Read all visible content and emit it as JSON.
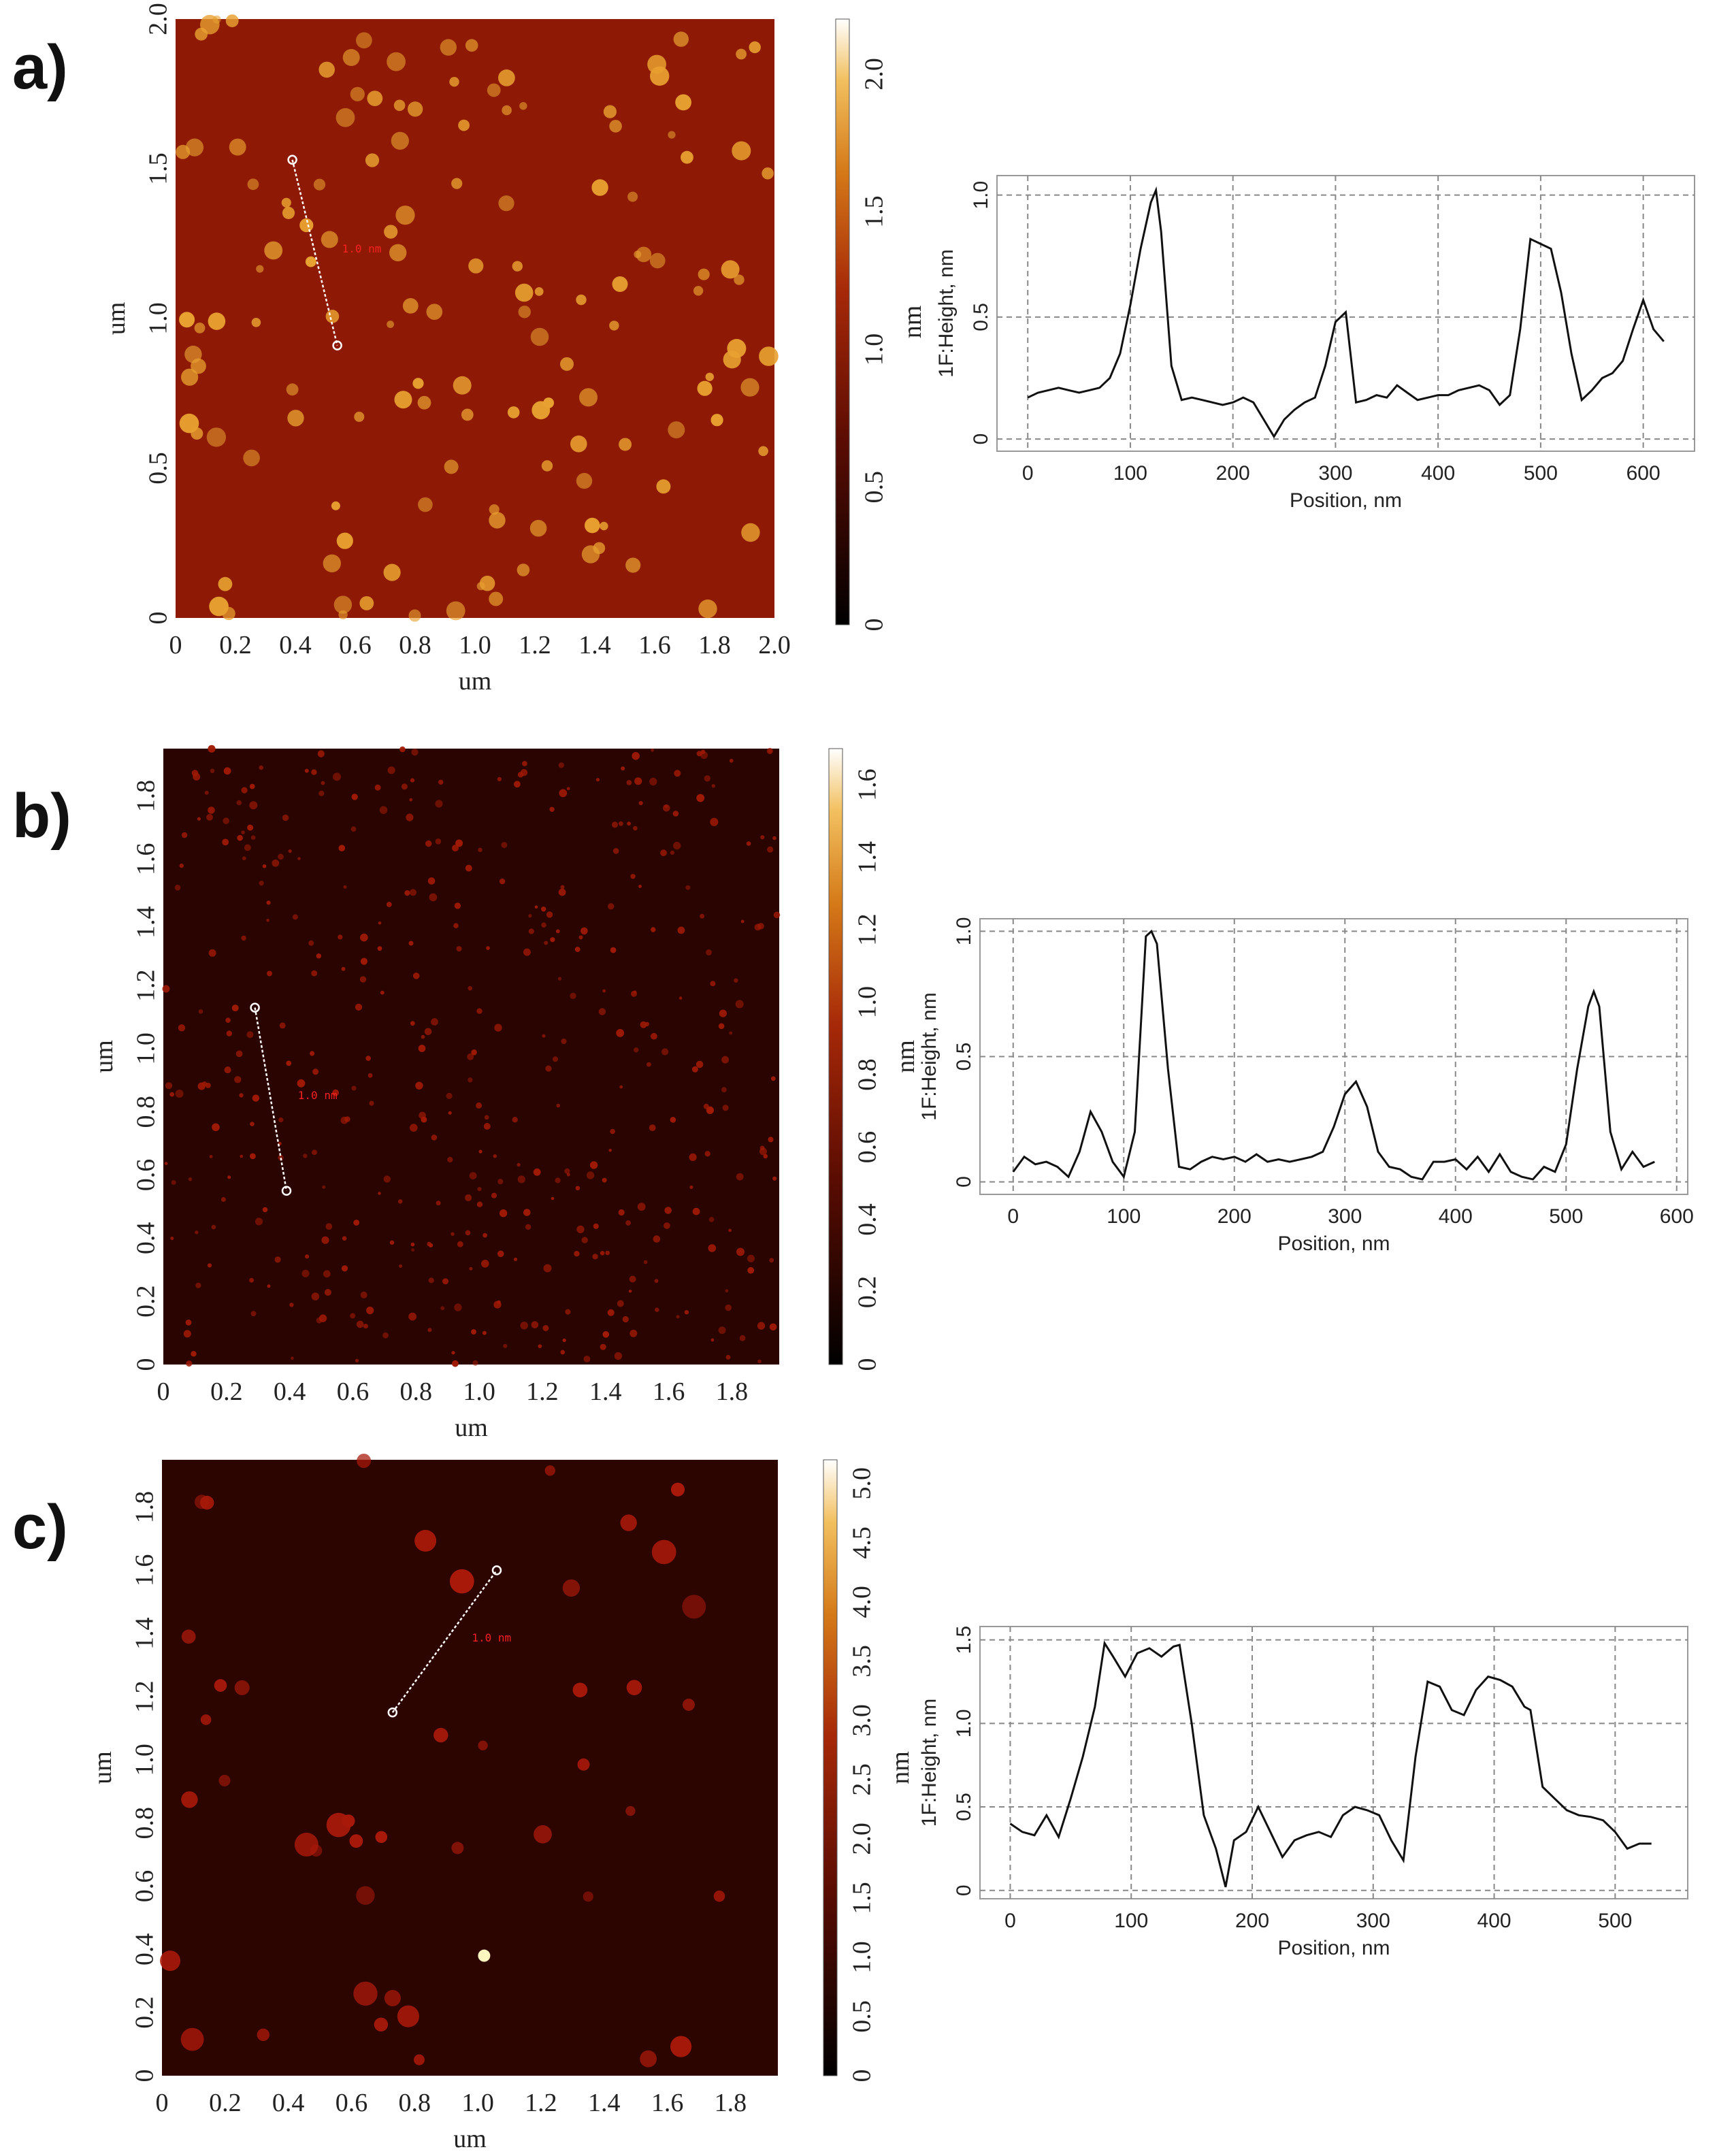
{
  "chart_data": [
    {
      "type": "heatmap",
      "panel": "a)",
      "xlabel": "um",
      "ylabel": "um",
      "xlim": [
        0,
        2.0
      ],
      "ylim": [
        0,
        2.0
      ],
      "x_ticks": [
        "0",
        "0.2",
        "0.4",
        "0.6",
        "0.8",
        "1.0",
        "1.2",
        "1.4",
        "1.6",
        "1.8",
        "2.0"
      ],
      "y_ticks": [
        "0",
        "0.5",
        "1.0",
        "1.5",
        "2.0"
      ],
      "colorbar": {
        "label": "nm",
        "range": [
          0,
          2.2
        ],
        "ticks": [
          "0",
          "0.5",
          "1.0",
          "1.5",
          "2.0"
        ]
      },
      "background_color": "#8e1a06",
      "particle_color": "#e8a030",
      "particle_count": 140,
      "particle_size_um": 0.045,
      "seed": 11,
      "scan_line": {
        "start": [
          0.39,
          1.53
        ],
        "end": [
          0.54,
          0.91
        ]
      }
    },
    {
      "type": "line",
      "panel": "a)",
      "title": "",
      "xlabel": "Position, nm",
      "ylabel": "1F:Height, nm",
      "xlim": [
        -30,
        650
      ],
      "ylim": [
        -0.05,
        1.08
      ],
      "x_ticks": [
        0,
        100,
        200,
        300,
        400,
        500,
        600
      ],
      "y_ticks": [
        0,
        0.5,
        1.0
      ],
      "grid": true,
      "x": [
        0,
        10,
        20,
        30,
        40,
        50,
        60,
        70,
        80,
        90,
        100,
        110,
        120,
        125,
        130,
        140,
        150,
        160,
        170,
        180,
        190,
        200,
        210,
        220,
        230,
        240,
        250,
        260,
        270,
        280,
        290,
        300,
        310,
        320,
        330,
        340,
        350,
        360,
        370,
        380,
        390,
        400,
        410,
        420,
        430,
        440,
        450,
        460,
        470,
        480,
        490,
        500,
        510,
        520,
        530,
        540,
        550,
        560,
        570,
        580,
        590,
        600,
        610,
        620
      ],
      "y": [
        0.17,
        0.19,
        0.2,
        0.21,
        0.2,
        0.19,
        0.2,
        0.21,
        0.25,
        0.35,
        0.55,
        0.78,
        0.97,
        1.02,
        0.85,
        0.3,
        0.16,
        0.17,
        0.16,
        0.15,
        0.14,
        0.15,
        0.17,
        0.15,
        0.08,
        0.01,
        0.08,
        0.12,
        0.15,
        0.17,
        0.3,
        0.48,
        0.52,
        0.15,
        0.16,
        0.18,
        0.17,
        0.22,
        0.19,
        0.16,
        0.17,
        0.18,
        0.18,
        0.2,
        0.21,
        0.22,
        0.2,
        0.14,
        0.18,
        0.45,
        0.82,
        0.8,
        0.78,
        0.6,
        0.35,
        0.16,
        0.2,
        0.25,
        0.27,
        0.32,
        0.45,
        0.57,
        0.45,
        0.4
      ]
    },
    {
      "type": "heatmap",
      "panel": "b)",
      "xlabel": "um",
      "ylabel": "um",
      "xlim": [
        0,
        1.95
      ],
      "ylim": [
        0,
        1.95
      ],
      "x_ticks": [
        "0",
        "0.2",
        "0.4",
        "0.6",
        "0.8",
        "1.0",
        "1.2",
        "1.4",
        "1.6",
        "1.8"
      ],
      "y_ticks": [
        "0",
        "0.2",
        "0.4",
        "0.6",
        "0.8",
        "1.0",
        "1.2",
        "1.4",
        "1.6",
        "1.8"
      ],
      "colorbar": {
        "label": "nm",
        "range": [
          0,
          1.7
        ],
        "ticks": [
          "0",
          "0.2",
          "0.4",
          "0.6",
          "0.8",
          "1.0",
          "1.2",
          "1.4",
          "1.6"
        ]
      },
      "background_color": "#2a0400",
      "particle_color": "#a11a04",
      "particle_count": 420,
      "particle_size_um": 0.018,
      "seed": 23,
      "scan_line": {
        "start": [
          0.29,
          1.13
        ],
        "end": [
          0.39,
          0.55
        ]
      }
    },
    {
      "type": "line",
      "panel": "b)",
      "title": "",
      "xlabel": "Position, nm",
      "ylabel": "1F:Height, nm",
      "xlim": [
        -30,
        610
      ],
      "ylim": [
        -0.05,
        1.05
      ],
      "x_ticks": [
        0,
        100,
        200,
        300,
        400,
        500,
        600
      ],
      "y_ticks": [
        0,
        0.5,
        1.0
      ],
      "grid": true,
      "x": [
        0,
        10,
        20,
        30,
        40,
        50,
        60,
        70,
        80,
        90,
        100,
        110,
        120,
        125,
        130,
        140,
        150,
        160,
        170,
        180,
        190,
        200,
        210,
        220,
        230,
        240,
        250,
        260,
        270,
        280,
        290,
        300,
        310,
        320,
        330,
        340,
        350,
        360,
        370,
        380,
        390,
        400,
        410,
        420,
        430,
        440,
        450,
        460,
        470,
        480,
        490,
        500,
        510,
        520,
        525,
        530,
        540,
        550,
        560,
        570,
        580
      ],
      "y": [
        0.04,
        0.1,
        0.07,
        0.08,
        0.06,
        0.02,
        0.12,
        0.28,
        0.2,
        0.08,
        0.02,
        0.2,
        0.98,
        1.0,
        0.95,
        0.45,
        0.06,
        0.05,
        0.08,
        0.1,
        0.09,
        0.1,
        0.08,
        0.11,
        0.08,
        0.09,
        0.08,
        0.09,
        0.1,
        0.12,
        0.22,
        0.35,
        0.4,
        0.3,
        0.12,
        0.06,
        0.05,
        0.02,
        0.01,
        0.08,
        0.08,
        0.09,
        0.05,
        0.1,
        0.04,
        0.11,
        0.04,
        0.02,
        0.01,
        0.06,
        0.04,
        0.15,
        0.45,
        0.7,
        0.76,
        0.7,
        0.2,
        0.05,
        0.12,
        0.06,
        0.08
      ]
    },
    {
      "type": "heatmap",
      "panel": "c)",
      "xlabel": "um",
      "ylabel": "um",
      "xlim": [
        0,
        1.95
      ],
      "ylim": [
        0,
        1.95
      ],
      "x_ticks": [
        "0",
        "0.2",
        "0.4",
        "0.6",
        "0.8",
        "1.0",
        "1.2",
        "1.4",
        "1.6",
        "1.8"
      ],
      "y_ticks": [
        "0",
        "0.2",
        "0.4",
        "0.6",
        "0.8",
        "1.0",
        "1.2",
        "1.4",
        "1.6",
        "1.8"
      ],
      "colorbar": {
        "label": "nm",
        "range": [
          0,
          5.2
        ],
        "ticks": [
          "0",
          "0.5",
          "1.0",
          "1.5",
          "2.0",
          "2.5",
          "3.0",
          "3.5",
          "4.0",
          "4.5",
          "5.0"
        ]
      },
      "background_color": "#2c0400",
      "particle_color": "#a8190a",
      "particle_count": 45,
      "particle_size_um": 0.055,
      "seed": 37,
      "scan_line": {
        "start": [
          0.73,
          1.15
        ],
        "end": [
          1.06,
          1.6
        ]
      }
    },
    {
      "type": "line",
      "panel": "c)",
      "title": "",
      "xlabel": "Position, nm",
      "ylabel": "1F:Height, nm",
      "xlim": [
        -25,
        560
      ],
      "ylim": [
        -0.05,
        1.58
      ],
      "x_ticks": [
        0,
        100,
        200,
        300,
        400,
        500
      ],
      "y_ticks": [
        0,
        0.5,
        1.0,
        1.5
      ],
      "grid": true,
      "x": [
        0,
        10,
        20,
        30,
        40,
        50,
        60,
        70,
        78,
        85,
        95,
        105,
        115,
        125,
        135,
        140,
        150,
        160,
        170,
        178,
        185,
        195,
        205,
        215,
        225,
        235,
        245,
        255,
        265,
        275,
        285,
        295,
        305,
        315,
        325,
        335,
        345,
        355,
        365,
        375,
        385,
        395,
        405,
        415,
        425,
        430,
        440,
        450,
        460,
        470,
        480,
        490,
        500,
        510,
        520,
        530
      ],
      "y": [
        0.4,
        0.35,
        0.33,
        0.45,
        0.32,
        0.55,
        0.8,
        1.1,
        1.48,
        1.4,
        1.28,
        1.42,
        1.45,
        1.4,
        1.46,
        1.47,
        1.0,
        0.45,
        0.25,
        0.02,
        0.3,
        0.35,
        0.5,
        0.35,
        0.2,
        0.3,
        0.33,
        0.35,
        0.32,
        0.45,
        0.5,
        0.48,
        0.45,
        0.3,
        0.18,
        0.8,
        1.25,
        1.22,
        1.08,
        1.05,
        1.2,
        1.28,
        1.26,
        1.22,
        1.1,
        1.08,
        0.62,
        0.55,
        0.48,
        0.45,
        0.44,
        0.42,
        0.35,
        0.25,
        0.28,
        0.28
      ]
    }
  ],
  "panel_labels": [
    "a)",
    "b)",
    "c)"
  ],
  "scan_line_label": "1.0 nm"
}
